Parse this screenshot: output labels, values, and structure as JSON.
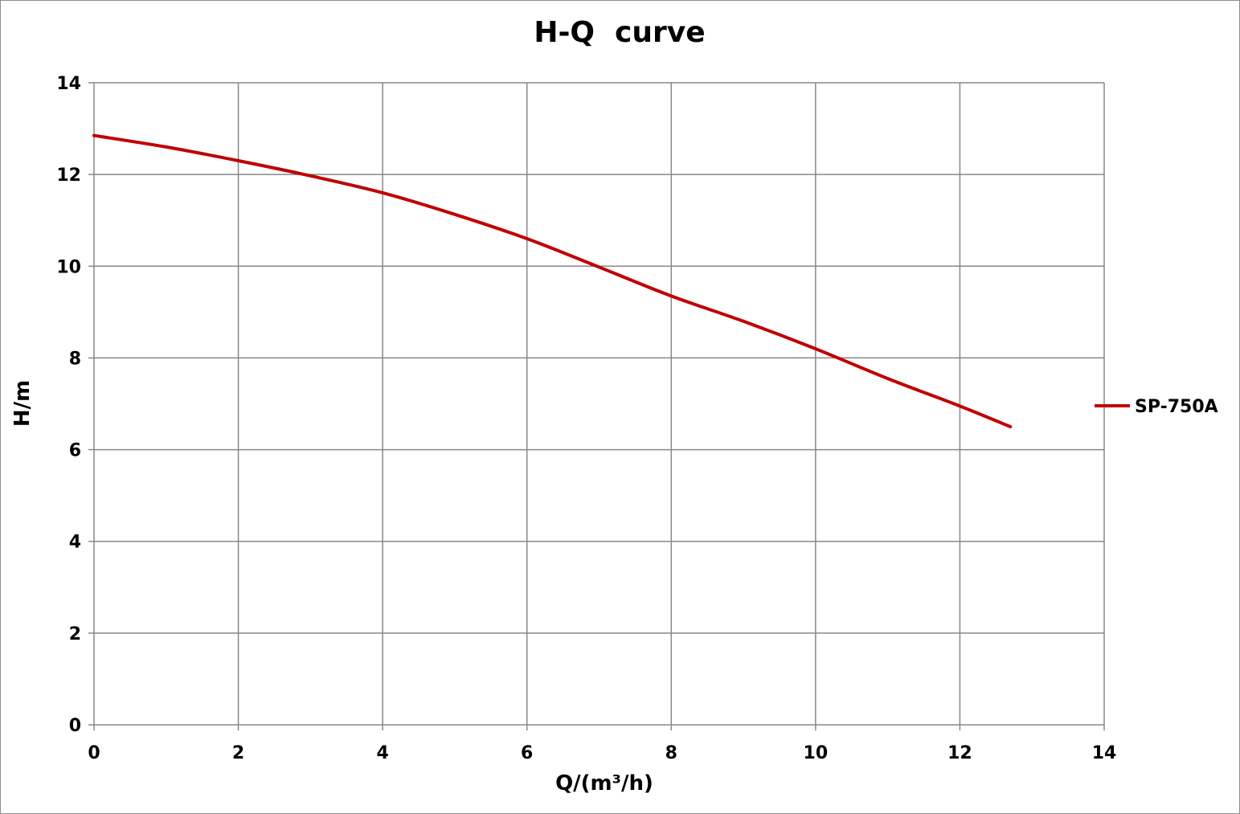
{
  "chart_data": {
    "type": "line",
    "title": "H-Q  curve",
    "xlabel": "Q/(m³/h)",
    "ylabel": "H/m",
    "xlim": [
      0,
      14
    ],
    "ylim": [
      0,
      14
    ],
    "x_ticks": [
      "0",
      "2",
      "4",
      "6",
      "8",
      "10",
      "12",
      "14"
    ],
    "y_ticks": [
      "0",
      "2",
      "4",
      "6",
      "8",
      "10",
      "12",
      "14"
    ],
    "grid": true,
    "legend_position": "right",
    "series": [
      {
        "name": "SP-750A",
        "color": "#C00000",
        "x": [
          0,
          1,
          2,
          3,
          4,
          5,
          6,
          7,
          8,
          9,
          10,
          11,
          12,
          12.7
        ],
        "y": [
          12.85,
          12.6,
          12.3,
          11.97,
          11.6,
          11.13,
          10.6,
          9.98,
          9.35,
          8.8,
          8.2,
          7.55,
          6.95,
          6.5
        ]
      }
    ]
  }
}
